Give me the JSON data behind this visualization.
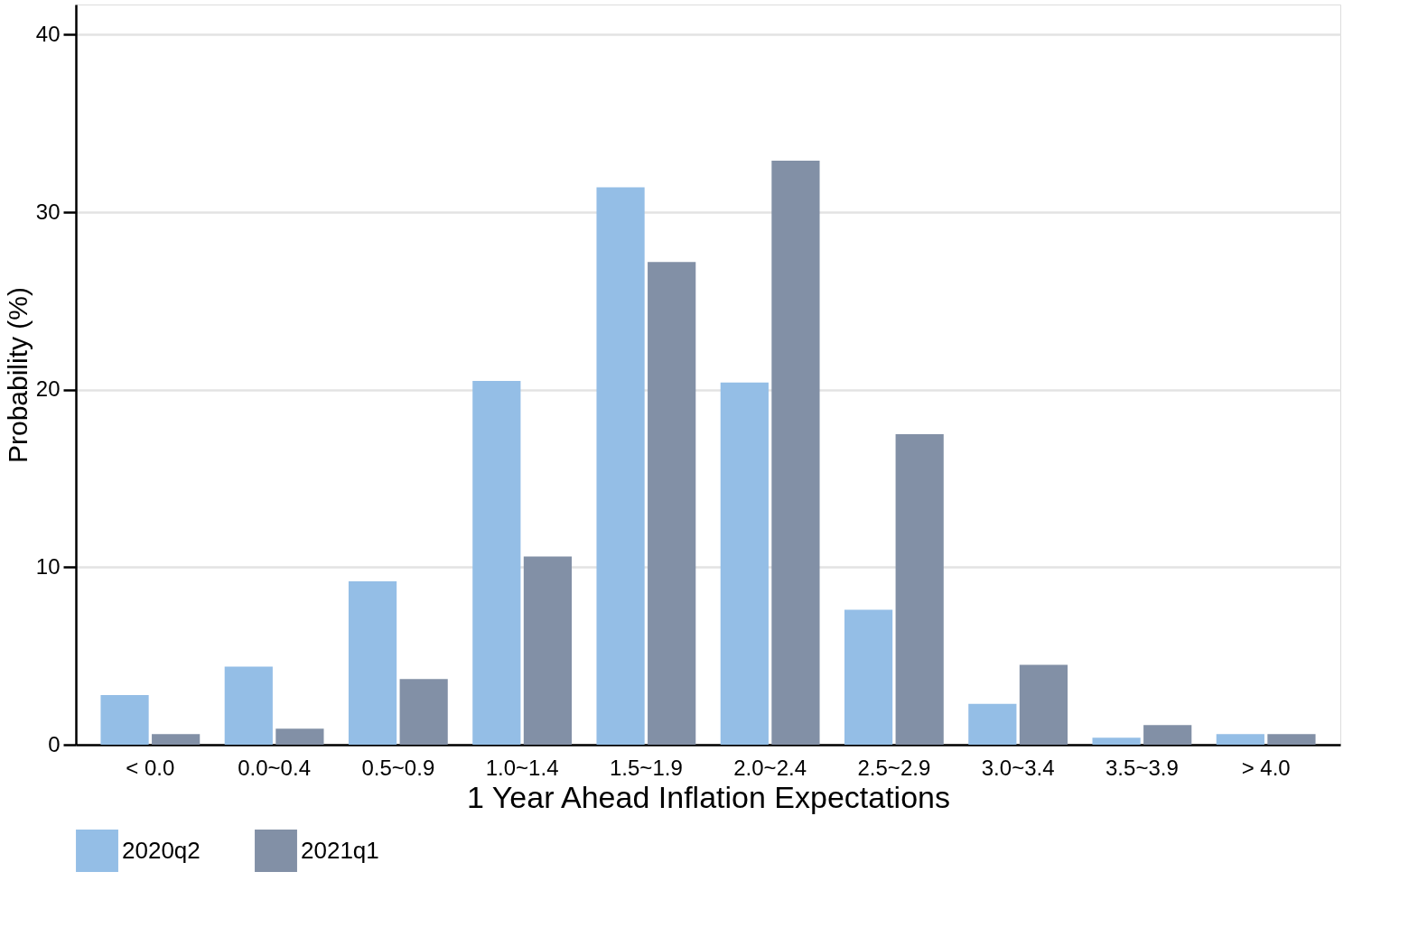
{
  "chart_data": {
    "type": "bar",
    "xlabel": "1 Year Ahead Inflation Expectations",
    "ylabel": "Probability (%)",
    "categories": [
      "< 0.0",
      "0.0~0.4",
      "0.5~0.9",
      "1.0~1.4",
      "1.5~1.9",
      "2.0~2.4",
      "2.5~2.9",
      "3.0~3.4",
      "3.5~3.9",
      "> 4.0"
    ],
    "series": [
      {
        "name": "2020q2",
        "color": "#94bee6",
        "values": [
          2.8,
          4.4,
          9.2,
          20.5,
          31.4,
          20.4,
          7.6,
          2.3,
          0.4,
          0.6
        ]
      },
      {
        "name": "2021q1",
        "color": "#8290a6",
        "values": [
          0.6,
          0.9,
          3.7,
          10.6,
          27.2,
          32.9,
          17.5,
          4.5,
          1.1,
          0.6
        ]
      }
    ],
    "ylim": [
      0,
      41.7
    ],
    "yticks": [
      0,
      10,
      20,
      30,
      40
    ],
    "grid": "y",
    "legend": "bottom"
  }
}
